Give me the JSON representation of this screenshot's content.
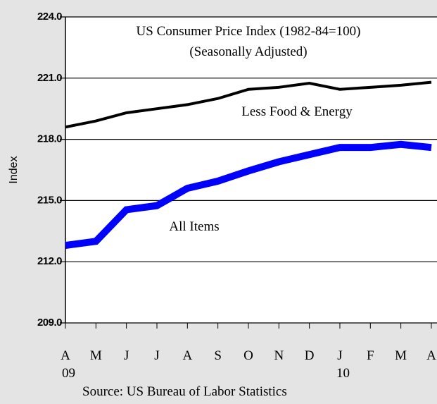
{
  "chart_data": {
    "type": "line",
    "title": "US Consumer Price Index (1982-84=100)",
    "subtitle": "(Seasonally Adjusted)",
    "y_label": "Index",
    "source": "Source: US Bureau of Labor Statistics",
    "categories": [
      "A",
      "M",
      "J",
      "J",
      "A",
      "S",
      "O",
      "N",
      "D",
      "J",
      "F",
      "M",
      "A"
    ],
    "year_labels": [
      "09",
      null,
      null,
      null,
      null,
      null,
      null,
      null,
      null,
      "10",
      null,
      null,
      null
    ],
    "series": [
      {
        "name": "Less Food & Energy",
        "color": "#000000",
        "values": [
          218.6,
          218.9,
          219.3,
          219.5,
          219.7,
          220.0,
          220.45,
          220.55,
          220.75,
          220.45,
          220.55,
          220.65,
          220.8
        ]
      },
      {
        "name": "All Items",
        "color": "#0000ff",
        "values": [
          212.8,
          213.0,
          214.55,
          214.75,
          215.6,
          215.95,
          216.45,
          216.9,
          217.25,
          217.6,
          217.6,
          217.75,
          217.6
        ]
      }
    ],
    "ylim": [
      209,
      224
    ],
    "yticks": [
      {
        "value": 209,
        "label": "209.0"
      },
      {
        "value": 212,
        "label": "212.0"
      },
      {
        "value": 215,
        "label": "215.0"
      },
      {
        "value": 218,
        "label": "218.0"
      },
      {
        "value": 221,
        "label": "221.0"
      },
      {
        "value": 224,
        "label": "224.0"
      }
    ],
    "grid": true
  }
}
